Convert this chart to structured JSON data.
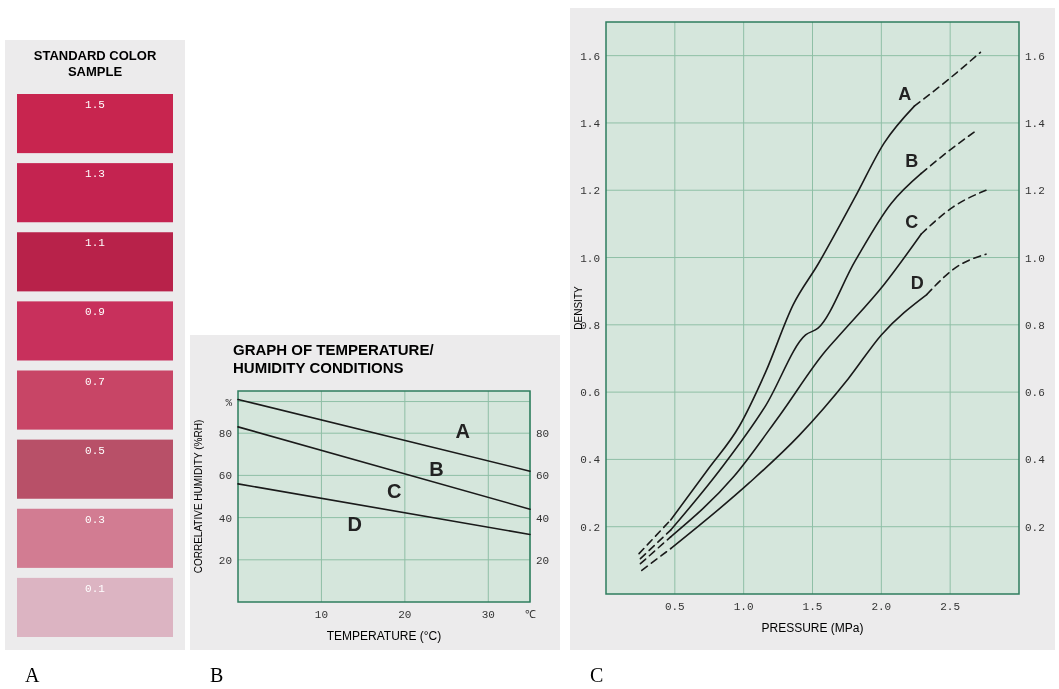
{
  "chart_data": [
    {
      "type": "heatmap",
      "title": "STANDARD COLOR\nSAMPLE",
      "categories": [
        null
      ],
      "y_categories": [
        null,
        null,
        null,
        null,
        null,
        null,
        null,
        null
      ],
      "cells": [
        [
          1.5
        ],
        [
          1.3
        ],
        [
          1.1
        ],
        [
          0.9
        ],
        [
          0.7
        ],
        [
          0.5
        ],
        [
          0.3
        ],
        [
          0.1
        ]
      ],
      "data_labels": true,
      "colors": [
        "#c8254f",
        "#c42350",
        "#b8224a",
        "#c8305c",
        "#c84566",
        "#b85068",
        "#d27c92",
        "#dcb4c2"
      ],
      "annotations": [
        "A"
      ]
    },
    {
      "type": "line",
      "title": "GRAPH OF TEMPERATURE/\nHUMIDITY CONDITIONS",
      "xlabel": "TEMPERATURE (°C)",
      "ylabel": "CORRELATIVE HUMIDITY (%RH)",
      "xlim": [
        0,
        35
      ],
      "xticks": [
        10,
        20,
        30,
        {
          "value": 35,
          "label": "℃"
        }
      ],
      "ylim": [
        0,
        100
      ],
      "yticks": [
        20,
        40,
        60,
        80,
        {
          "value": 95,
          "label": "%"
        }
      ],
      "y2lim": [
        0,
        100
      ],
      "y2ticks": [
        20,
        40,
        60,
        80
      ],
      "grid": true,
      "series": [
        {
          "color": "#1a1a1a",
          "x": [
            0,
            35
          ],
          "values": [
            96,
            62
          ]
        },
        {
          "color": "#1a1a1a",
          "x": [
            0,
            35
          ],
          "values": [
            83,
            44
          ]
        },
        {
          "color": "#1a1a1a",
          "x": [
            0,
            35
          ],
          "values": [
            56,
            32
          ]
        }
      ],
      "annotations": [
        "A",
        "B",
        "C",
        "D",
        "B"
      ]
    },
    {
      "type": "line",
      "xlabel": "PRESSURE (MPa)",
      "ylabel": "DENSITY",
      "xlim": [
        0,
        3
      ],
      "xticks": [
        0.5,
        {
          "value": 1,
          "label": "1.0"
        },
        1.5,
        {
          "value": 2,
          "label": "2.0"
        },
        2.5
      ],
      "ylim": [
        0,
        1.7
      ],
      "yticks": [
        0.2,
        0.4,
        0.6,
        0.8,
        {
          "value": 1,
          "label": "1.0"
        },
        1.2,
        1.4,
        1.6
      ],
      "y2lim": [
        0,
        1.7
      ],
      "y2ticks": [
        0.2,
        0.4,
        0.6,
        0.8,
        {
          "value": 1,
          "label": "1.0"
        },
        1.2,
        1.4,
        1.6
      ],
      "grid": true,
      "series": [
        {
          "color": "#1a1a1a",
          "line_style": "dashed",
          "x": [
            0.24,
            0.47
          ],
          "values": [
            0.12,
            0.22
          ]
        },
        {
          "name": "A",
          "color": "#1a1a1a",
          "line_style": "solid",
          "x": [
            0.47,
            0.74,
            0.97,
            1.16,
            1.36,
            1.54,
            1.81,
            2.02,
            2.24
          ],
          "values": [
            0.22,
            0.37,
            0.5,
            0.66,
            0.86,
            0.98,
            1.18,
            1.34,
            1.45
          ]
        },
        {
          "color": "#1a1a1a",
          "line_style": "dashed",
          "x": [
            2.24,
            2.49,
            2.72
          ],
          "values": [
            1.45,
            1.53,
            1.61
          ]
        },
        {
          "color": "#1a1a1a",
          "line_style": "dashed",
          "x": [
            0.25,
            0.47
          ],
          "values": [
            0.105,
            0.19
          ]
        },
        {
          "name": "B",
          "color": "#1a1a1a",
          "line_style": "solid",
          "x": [
            0.47,
            0.83,
            1.16,
            1.45,
            1.54,
            1.81,
            2.07,
            2.29
          ],
          "values": [
            0.19,
            0.37,
            0.56,
            0.77,
            0.79,
            0.99,
            1.16,
            1.25
          ]
        },
        {
          "color": "#1a1a1a",
          "line_style": "dashed",
          "x": [
            2.29,
            2.5,
            2.7
          ],
          "values": [
            1.25,
            1.32,
            1.38
          ]
        },
        {
          "color": "#1a1a1a",
          "line_style": "dashed",
          "x": [
            0.25,
            0.47
          ],
          "values": [
            0.09,
            0.17
          ]
        },
        {
          "name": "C",
          "color": "#1a1a1a",
          "line_style": "solid",
          "x": [
            0.47,
            0.93,
            1.26,
            1.59,
            1.72,
            2.02,
            2.29
          ],
          "values": [
            0.17,
            0.35,
            0.53,
            0.72,
            0.78,
            0.92,
            1.07
          ]
        },
        {
          "color": "#1a1a1a",
          "line_style": "dashed",
          "x": [
            2.29,
            2.52,
            2.76
          ],
          "values": [
            1.07,
            1.15,
            1.2
          ]
        },
        {
          "color": "#1a1a1a",
          "line_style": "dashed",
          "x": [
            0.26,
            0.47
          ],
          "values": [
            0.07,
            0.135
          ]
        },
        {
          "name": "D",
          "color": "#1a1a1a",
          "line_style": "solid",
          "x": [
            0.47,
            1.04,
            1.4,
            1.76,
            2.0,
            2.33
          ],
          "values": [
            0.135,
            0.33,
            0.47,
            0.64,
            0.77,
            0.89
          ]
        },
        {
          "color": "#1a1a1a",
          "line_style": "dashed",
          "x": [
            2.33,
            2.54,
            2.76
          ],
          "values": [
            0.89,
            0.97,
            1.01
          ]
        }
      ],
      "annotations": [
        "C"
      ]
    }
  ]
}
